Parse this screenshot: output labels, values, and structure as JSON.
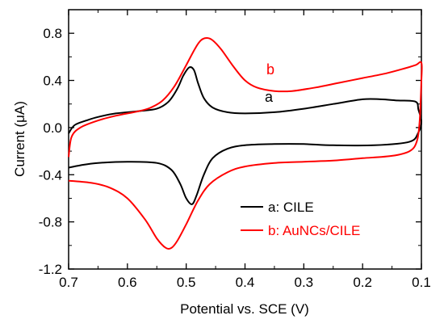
{
  "chart_data": {
    "type": "line",
    "xlabel": "Potential vs. SCE (V)",
    "ylabel": "Current (μA)",
    "xlim": [
      0.7,
      0.1
    ],
    "ylim": [
      -1.2,
      1.0
    ],
    "x_ticks": [
      "0.7",
      "0.6",
      "0.5",
      "0.4",
      "0.3",
      "0.2",
      "0.1"
    ],
    "y_ticks": [
      "0.8",
      "0.4",
      "0.0",
      "-0.4",
      "-0.8",
      "-1.2"
    ],
    "grid": false,
    "legend_position": "bottom-right",
    "series": [
      {
        "name": "a: CILE",
        "curve_label": "a",
        "color": "#000000",
        "values": [
          [
            0.7,
            -0.05
          ],
          [
            0.69,
            0.02
          ],
          [
            0.67,
            0.06
          ],
          [
            0.65,
            0.09
          ],
          [
            0.62,
            0.12
          ],
          [
            0.58,
            0.14
          ],
          [
            0.55,
            0.16
          ],
          [
            0.53,
            0.22
          ],
          [
            0.515,
            0.33
          ],
          [
            0.505,
            0.44
          ],
          [
            0.495,
            0.51
          ],
          [
            0.487,
            0.49
          ],
          [
            0.48,
            0.38
          ],
          [
            0.47,
            0.25
          ],
          [
            0.455,
            0.17
          ],
          [
            0.43,
            0.13
          ],
          [
            0.4,
            0.12
          ],
          [
            0.35,
            0.13
          ],
          [
            0.3,
            0.16
          ],
          [
            0.25,
            0.2
          ],
          [
            0.2,
            0.24
          ],
          [
            0.17,
            0.24
          ],
          [
            0.14,
            0.23
          ],
          [
            0.11,
            0.22
          ],
          [
            0.105,
            0.15
          ],
          [
            0.1,
            0.05
          ],
          [
            0.105,
            -0.04
          ],
          [
            0.12,
            -0.12
          ],
          [
            0.18,
            -0.15
          ],
          [
            0.25,
            -0.15
          ],
          [
            0.3,
            -0.14
          ],
          [
            0.35,
            -0.14
          ],
          [
            0.4,
            -0.15
          ],
          [
            0.43,
            -0.18
          ],
          [
            0.455,
            -0.26
          ],
          [
            0.47,
            -0.4
          ],
          [
            0.482,
            -0.57
          ],
          [
            0.49,
            -0.65
          ],
          [
            0.5,
            -0.6
          ],
          [
            0.51,
            -0.48
          ],
          [
            0.525,
            -0.36
          ],
          [
            0.55,
            -0.3
          ],
          [
            0.6,
            -0.29
          ],
          [
            0.65,
            -0.3
          ],
          [
            0.68,
            -0.32
          ],
          [
            0.7,
            -0.34
          ]
        ]
      },
      {
        "name": "b: AuNCs/CILE",
        "curve_label": "b",
        "color": "#ff0000",
        "values": [
          [
            0.7,
            -0.25
          ],
          [
            0.695,
            -0.08
          ],
          [
            0.68,
            0.0
          ],
          [
            0.65,
            0.06
          ],
          [
            0.62,
            0.1
          ],
          [
            0.58,
            0.14
          ],
          [
            0.56,
            0.17
          ],
          [
            0.54,
            0.23
          ],
          [
            0.52,
            0.35
          ],
          [
            0.5,
            0.53
          ],
          [
            0.485,
            0.67
          ],
          [
            0.475,
            0.74
          ],
          [
            0.465,
            0.76
          ],
          [
            0.455,
            0.74
          ],
          [
            0.44,
            0.66
          ],
          [
            0.42,
            0.52
          ],
          [
            0.4,
            0.4
          ],
          [
            0.38,
            0.34
          ],
          [
            0.35,
            0.31
          ],
          [
            0.32,
            0.31
          ],
          [
            0.28,
            0.34
          ],
          [
            0.24,
            0.38
          ],
          [
            0.2,
            0.42
          ],
          [
            0.16,
            0.46
          ],
          [
            0.13,
            0.5
          ],
          [
            0.11,
            0.53
          ],
          [
            0.1,
            0.55
          ],
          [
            0.1,
            0.4
          ],
          [
            0.103,
            0.05
          ],
          [
            0.108,
            -0.12
          ],
          [
            0.12,
            -0.2
          ],
          [
            0.15,
            -0.24
          ],
          [
            0.2,
            -0.26
          ],
          [
            0.25,
            -0.28
          ],
          [
            0.3,
            -0.29
          ],
          [
            0.35,
            -0.3
          ],
          [
            0.4,
            -0.33
          ],
          [
            0.43,
            -0.38
          ],
          [
            0.46,
            -0.48
          ],
          [
            0.48,
            -0.62
          ],
          [
            0.5,
            -0.82
          ],
          [
            0.515,
            -0.96
          ],
          [
            0.525,
            -1.02
          ],
          [
            0.535,
            -1.02
          ],
          [
            0.55,
            -0.94
          ],
          [
            0.57,
            -0.78
          ],
          [
            0.6,
            -0.6
          ],
          [
            0.63,
            -0.51
          ],
          [
            0.66,
            -0.47
          ],
          [
            0.7,
            -0.45
          ]
        ]
      }
    ]
  }
}
